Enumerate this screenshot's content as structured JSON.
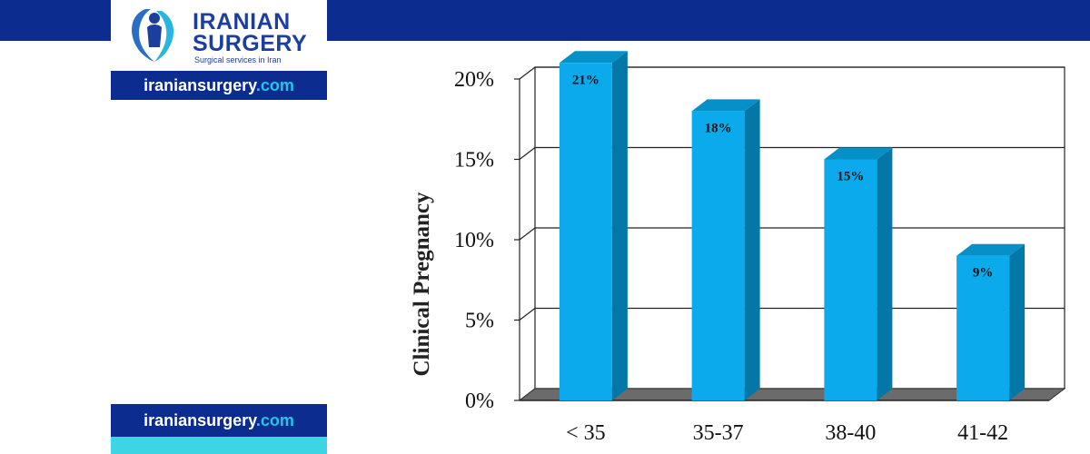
{
  "header": {
    "brand_line1": "IRANIAN",
    "brand_line2": "SURGERY",
    "tagline": "Surgical services in Iran",
    "site_name": "iraniansurgery",
    "site_tld": ".com"
  },
  "colors": {
    "brand_blue": "#0c2d8f",
    "domain_cyan": "#27c3e8",
    "bar_front": "#0aaaec",
    "bar_side": "#0277a8",
    "bar_top": "#0590c8",
    "floor": "#6b6b6b"
  },
  "icons": {
    "logo": "surgeon-emblem-icon"
  },
  "chart_data": {
    "type": "bar",
    "style": "3d",
    "categories": [
      "< 35",
      "35-37",
      "38-40",
      "41-42"
    ],
    "values": [
      21,
      18,
      15,
      9
    ],
    "data_labels": [
      "21%",
      "18%",
      "15%",
      "9%"
    ],
    "ylabel": "Clinical Pregnancy",
    "ytick_labels": [
      "0%",
      "5%",
      "10%",
      "15%",
      "20%"
    ],
    "yticks": [
      0,
      5,
      10,
      15,
      20
    ],
    "ylim": [
      0,
      20
    ],
    "grid": true,
    "legend": "none"
  }
}
